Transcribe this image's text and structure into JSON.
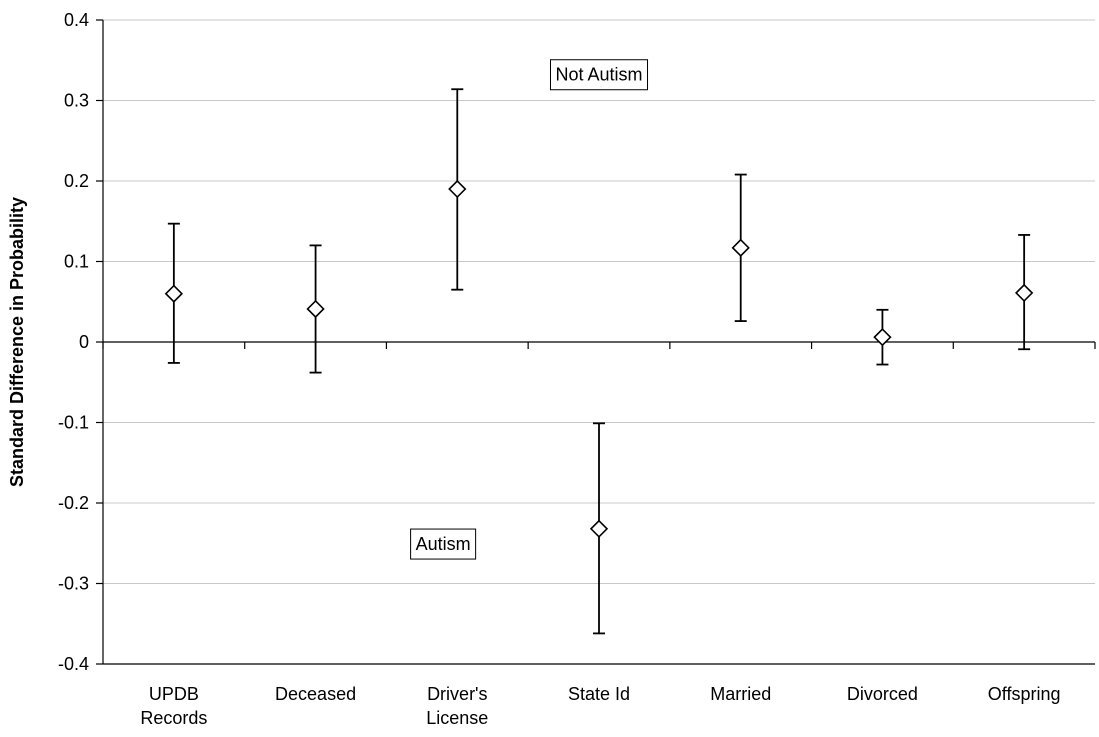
{
  "chart_data": {
    "type": "scatter",
    "title": "",
    "xlabel": "",
    "ylabel": "Standard Difference in Probability",
    "ylim": [
      -0.4,
      0.4
    ],
    "yticks": [
      0.4,
      0.3,
      0.2,
      0.1,
      0,
      -0.1,
      -0.2,
      -0.3,
      -0.4
    ],
    "ytick_labels": [
      "0.4",
      "0.3",
      "0.2",
      "0.1",
      "0",
      "-0.1",
      "-0.2",
      "-0.3",
      "-0.4"
    ],
    "grid": true,
    "categories": [
      "UPDB Records",
      "Deceased",
      "Driver's License",
      "State Id",
      "Married",
      "Divorced",
      "Offspring"
    ],
    "category_labels": [
      [
        "UPDB",
        "Records"
      ],
      [
        "Deceased"
      ],
      [
        "Driver's",
        "License"
      ],
      [
        "State Id"
      ],
      [
        "Married"
      ],
      [
        "Divorced"
      ],
      [
        "Offspring"
      ]
    ],
    "values": [
      0.06,
      0.041,
      0.19,
      -0.232,
      0.117,
      0.006,
      0.061
    ],
    "error_low": [
      -0.026,
      -0.038,
      0.065,
      -0.362,
      0.026,
      -0.028,
      -0.009
    ],
    "error_high": [
      0.147,
      0.12,
      0.314,
      -0.101,
      0.208,
      0.04,
      0.133
    ],
    "marker": "open-diamond",
    "annotations": [
      {
        "text": "Not Autism",
        "category_pos": 3.0,
        "y": 0.332
      },
      {
        "text": "Autism",
        "category_pos": 1.9,
        "y": -0.251
      }
    ]
  }
}
